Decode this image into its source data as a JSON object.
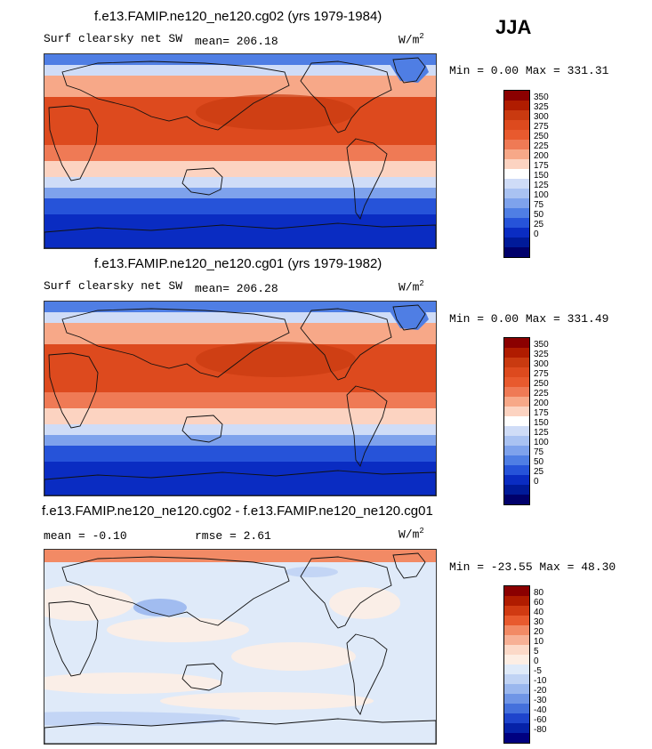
{
  "season": "JJA",
  "panels": [
    {
      "title": "f.e13.FAMIP.ne120_ne120.cg02 (yrs 1979-1984)",
      "left_label": "Surf clearsky net SW",
      "mid_label": "mean= 206.18",
      "units": "W/m",
      "units_sup": "2",
      "minmax": "Min =   0.00 Max = 331.31",
      "kind": "field"
    },
    {
      "title": "f.e13.FAMIP.ne120_ne120.cg01 (yrs 1979-1982)",
      "left_label": "Surf clearsky net SW",
      "mid_label": "mean= 206.28",
      "units": "W/m",
      "units_sup": "2",
      "minmax": "Min =   0.00 Max = 331.49",
      "kind": "field"
    },
    {
      "title": "f.e13.FAMIP.ne120_ne120.cg02 - f.e13.FAMIP.ne120_ne120.cg01",
      "left_label": "mean =  -0.10",
      "mid_label": "rmse =   2.61",
      "units": "W/m",
      "units_sup": "2",
      "minmax": "Min = -23.55 Max =  48.30",
      "kind": "diff"
    }
  ],
  "colorbars": {
    "field": {
      "labels": [
        "350",
        "325",
        "300",
        "275",
        "250",
        "225",
        "200",
        "175",
        "150",
        "125",
        "100",
        "75",
        "50",
        "25",
        "0"
      ],
      "colors": [
        "#8b0000",
        "#b01c00",
        "#c93a10",
        "#dd4a1e",
        "#e85a2e",
        "#ef7a55",
        "#f7a888",
        "#fcd3c1",
        "#ffffff",
        "#cfdcf7",
        "#a9c2f2",
        "#7ea2ec",
        "#4f7ee4",
        "#2653d9",
        "#0a2cc2",
        "#001a99",
        "#00006b"
      ]
    },
    "diff": {
      "labels": [
        "80",
        "60",
        "40",
        "30",
        "20",
        "10",
        "5",
        "0",
        "-5",
        "-10",
        "-20",
        "-30",
        "-40",
        "-60",
        "-80"
      ],
      "colors": [
        "#8b0000",
        "#b01c00",
        "#d03a12",
        "#e85a2e",
        "#f28a65",
        "#f7b095",
        "#fcd9c8",
        "#fdeee4",
        "#dfeaf9",
        "#c0d3f4",
        "#9ab7ee",
        "#6f95e6",
        "#4470dc",
        "#1e44cc",
        "#0622a8",
        "#000080"
      ]
    }
  }
}
